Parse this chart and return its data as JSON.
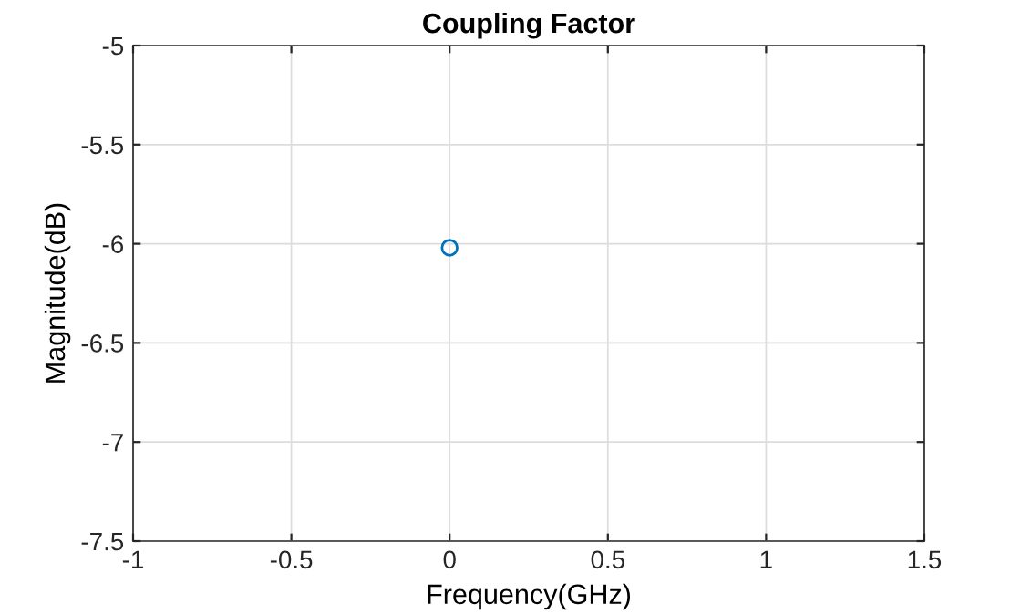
{
  "chart_data": {
    "type": "scatter",
    "title": "Coupling Factor",
    "xlabel": "Frequency(GHz)",
    "ylabel": "Magnitude(dB)",
    "x": [
      0
    ],
    "series": [
      {
        "color": "#0072bd",
        "values": [
          -6.02
        ]
      }
    ],
    "xlim": [
      -1,
      1.5
    ],
    "xticks": [
      -1,
      -0.5,
      0,
      0.5,
      1,
      1.5
    ],
    "ylim": [
      -7.5,
      -5
    ],
    "yticks": [
      -7.5,
      -7,
      -6.5,
      -6,
      -5.5,
      -5
    ],
    "grid": true,
    "marker": "circle"
  }
}
